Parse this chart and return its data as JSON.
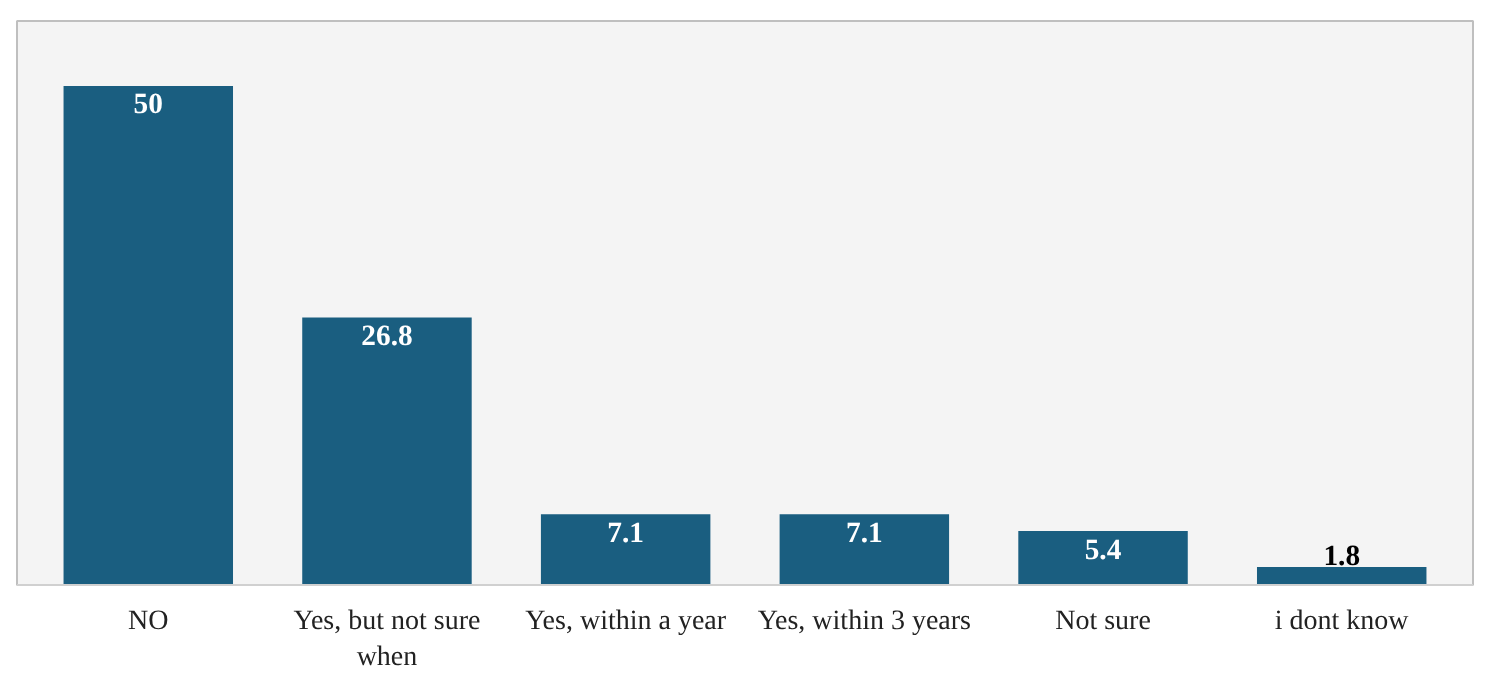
{
  "chart_data": {
    "type": "bar",
    "categories": [
      "NO",
      "Yes, but not sure when",
      "Yes, within a year",
      "Yes, within 3 years",
      "Not sure",
      "i dont know"
    ],
    "values": [
      50,
      26.8,
      7.1,
      7.1,
      5.4,
      1.8
    ],
    "color": "#1a5e80",
    "data_labels": true,
    "grid": false
  }
}
